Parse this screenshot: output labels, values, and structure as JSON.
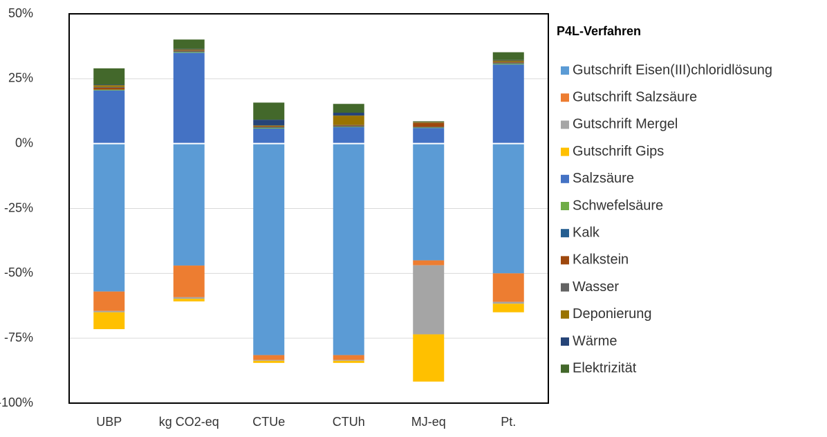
{
  "chart_data": {
    "type": "stacked-bar",
    "legend_title": "P4L-Verfahren",
    "categories": [
      "UBP",
      "kg CO2-eq",
      "CTUe",
      "CTUh",
      "MJ-eq",
      "Pt."
    ],
    "ylim": [
      -100,
      50
    ],
    "yticks": [
      {
        "value": -100,
        "label": "-100%"
      },
      {
        "value": -75,
        "label": "-75%"
      },
      {
        "value": -50,
        "label": "-50%"
      },
      {
        "value": -25,
        "label": "-25%"
      },
      {
        "value": 0,
        "label": "0%"
      },
      {
        "value": 25,
        "label": "25%"
      },
      {
        "value": 50,
        "label": "50%"
      }
    ],
    "grid": true,
    "legend_position": "right",
    "series": [
      {
        "name": "Gutschrift Eisen(III)chloridlösung",
        "color": "#5b9bd5",
        "values": [
          -57,
          -47,
          -81.5,
          -81.5,
          -45,
          -50
        ]
      },
      {
        "name": "Gutschrift Salzsäure",
        "color": "#ed7d31",
        "values": [
          -7.5,
          -12.2,
          -1.9,
          -1.9,
          -1.9,
          -11
        ]
      },
      {
        "name": "Gutschrift Mergel",
        "color": "#a5a5a5",
        "values": [
          -0.5,
          -0.6,
          -0.3,
          -0.3,
          -26.6,
          -0.7
        ]
      },
      {
        "name": "Gutschrift Gips",
        "color": "#ffc000",
        "values": [
          -6.5,
          -1,
          -0.8,
          -0.8,
          -18.2,
          -3.3
        ]
      },
      {
        "name": "Salzsäure",
        "color": "#4472c4",
        "values": [
          20.5,
          35,
          5.8,
          6.3,
          6,
          30.5
        ]
      },
      {
        "name": "Schwefelsäure",
        "color": "#70ad47",
        "values": [
          0.3,
          0.3,
          0.3,
          0.2,
          0.2,
          0.3
        ]
      },
      {
        "name": "Kalk",
        "color": "#255e91",
        "values": [
          0,
          0.2,
          0.2,
          0.2,
          0.2,
          0.2
        ]
      },
      {
        "name": "Kalkstein",
        "color": "#9e480e",
        "values": [
          0.7,
          0.3,
          0.3,
          0.3,
          1.5,
          0.3
        ]
      },
      {
        "name": "Wasser",
        "color": "#636363",
        "values": [
          0.3,
          0.2,
          0.1,
          0.2,
          0.1,
          0.2
        ]
      },
      {
        "name": "Deponierung",
        "color": "#997300",
        "values": [
          0.7,
          0.3,
          0.3,
          3.6,
          0.3,
          0.5
        ]
      },
      {
        "name": "Wärme",
        "color": "#264478",
        "values": [
          0.2,
          0.2,
          2.2,
          1.1,
          0.1,
          0.2
        ]
      },
      {
        "name": "Elektrizität",
        "color": "#43682b",
        "values": [
          6.3,
          3.6,
          6.6,
          3.4,
          0.2,
          3
        ]
      }
    ]
  }
}
